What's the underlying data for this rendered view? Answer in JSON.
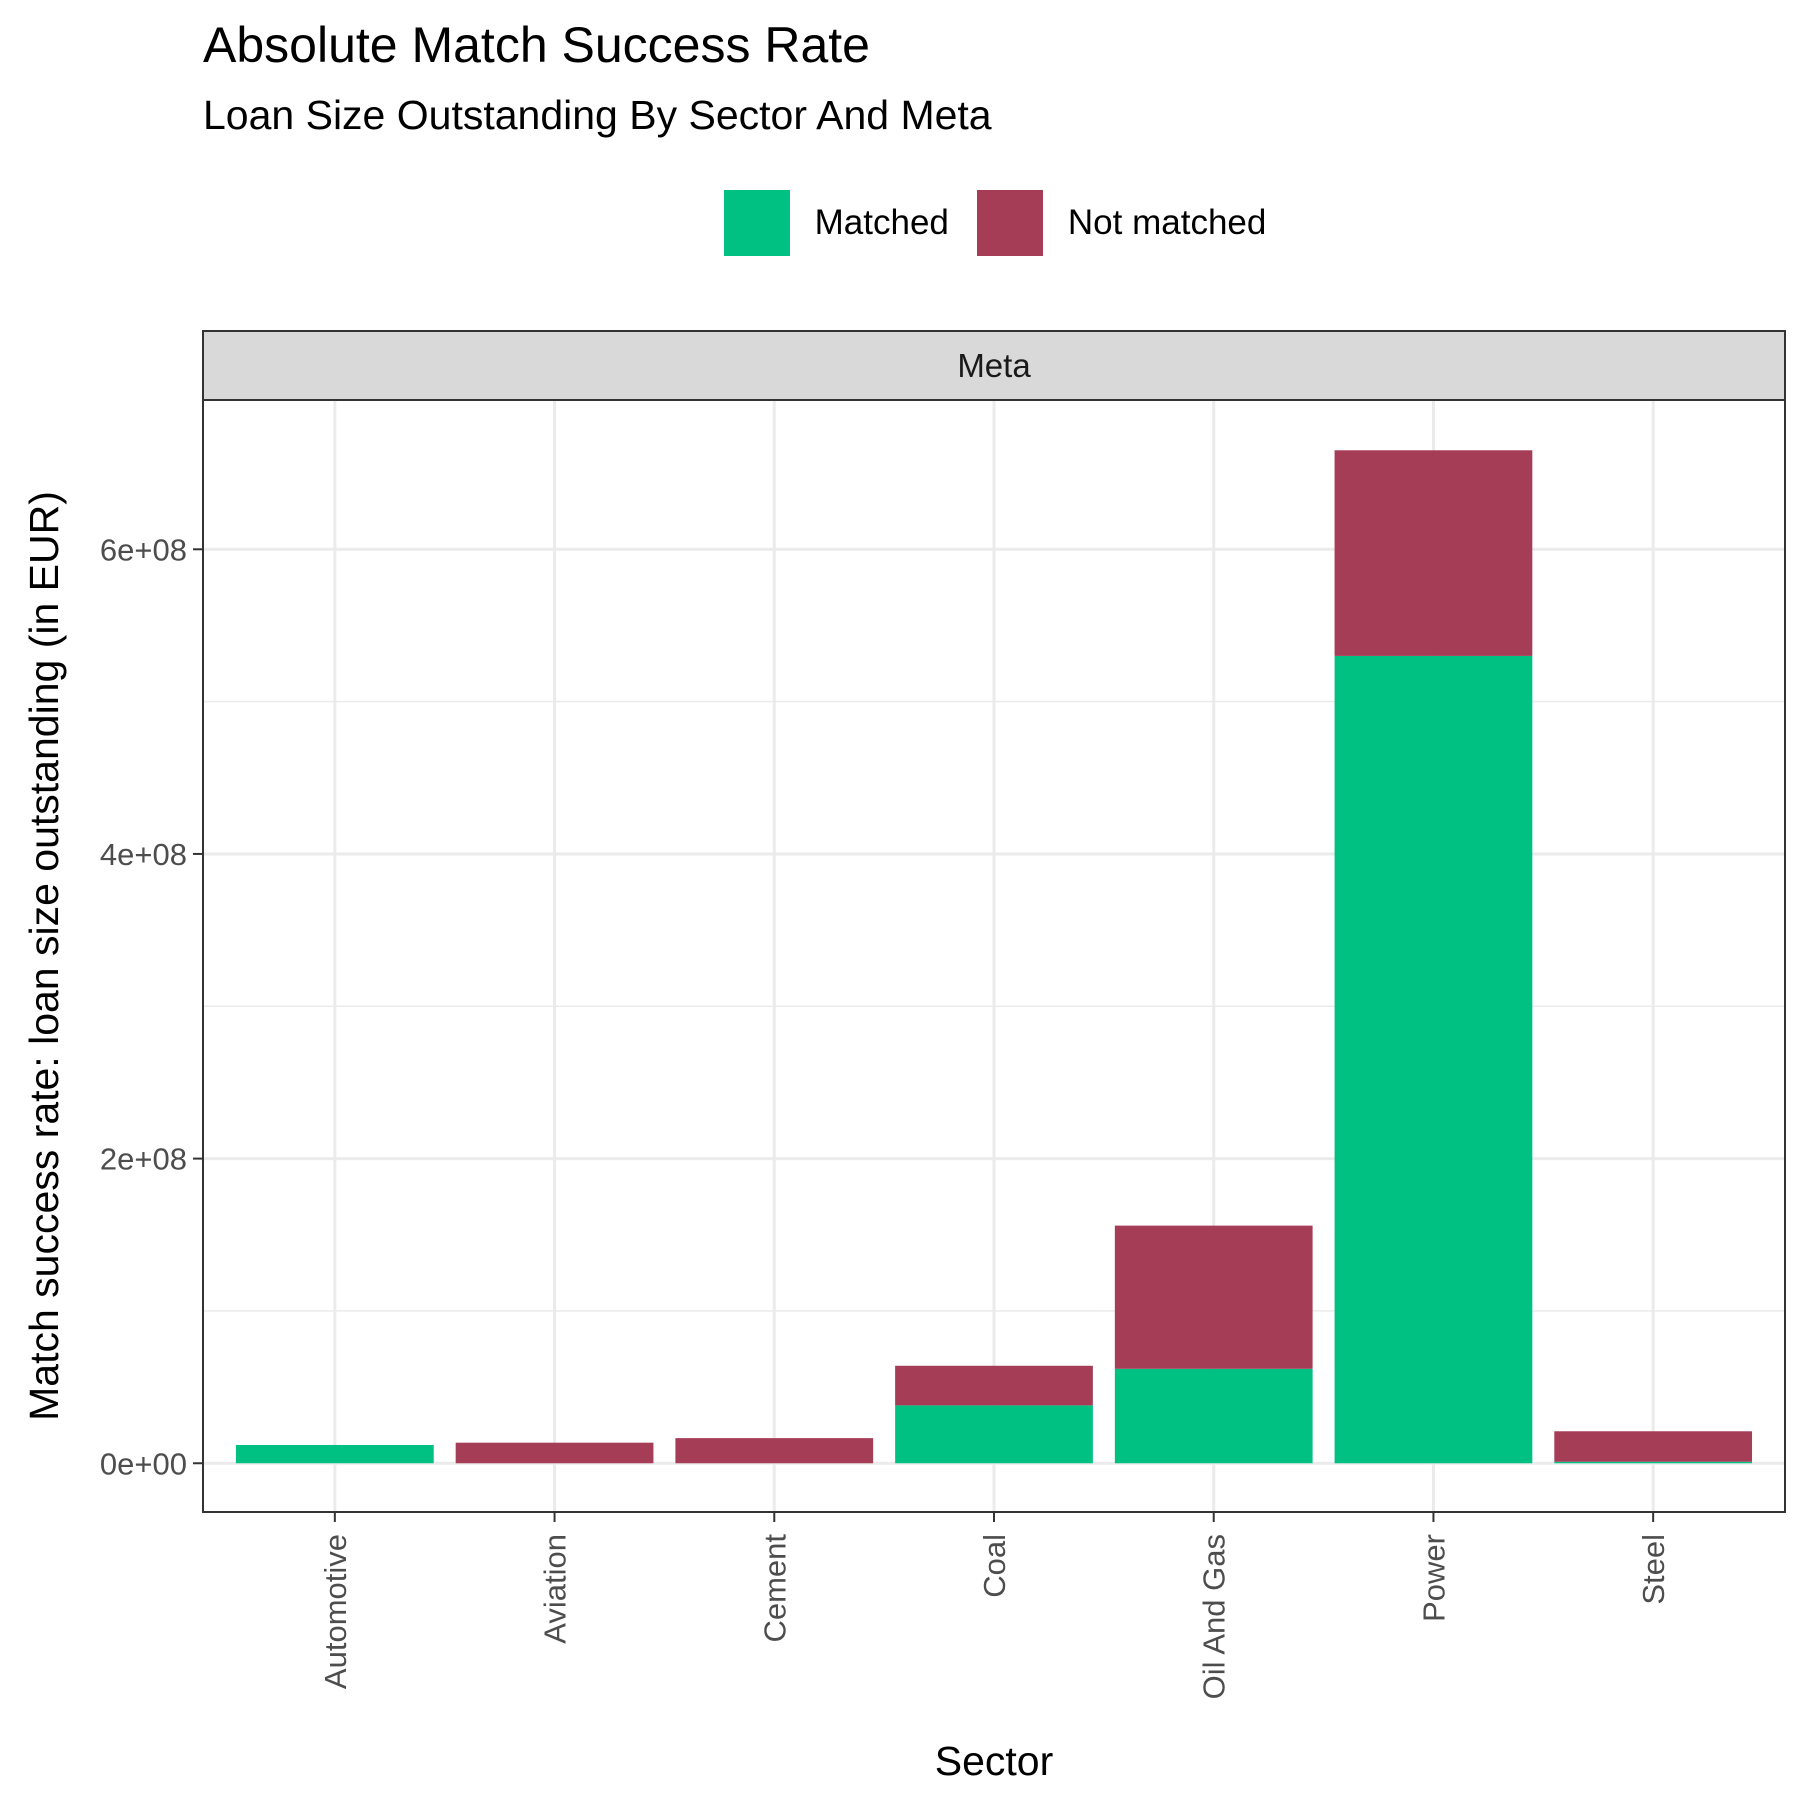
{
  "chart_data": {
    "type": "bar",
    "stacked": true,
    "title": "Absolute Match Success Rate",
    "subtitle": "Loan Size Outstanding By Sector And Meta",
    "facet_label": "Meta",
    "xlabel": "Sector",
    "ylabel": "Match success rate: loan size outstanding (in EUR)",
    "categories": [
      "Automotive",
      "Aviation",
      "Cement",
      "Coal",
      "Oil And Gas",
      "Power",
      "Steel"
    ],
    "series": [
      {
        "name": "Matched",
        "color": "#00C082",
        "values": [
          12000000,
          0,
          0,
          38000000,
          62000000,
          530000000,
          1000000
        ]
      },
      {
        "name": "Not matched",
        "color": "#A63D57",
        "values": [
          0,
          13500000,
          16500000,
          26000000,
          94000000,
          135000000,
          20000000
        ]
      }
    ],
    "ylim": [
      -32000000,
      698000000
    ],
    "y_ticks": [
      0,
      200000000,
      400000000,
      600000000
    ],
    "y_tick_labels": [
      "0e+00",
      "2e+08",
      "4e+08",
      "6e+08"
    ],
    "legend_position": "top",
    "grid": true
  }
}
